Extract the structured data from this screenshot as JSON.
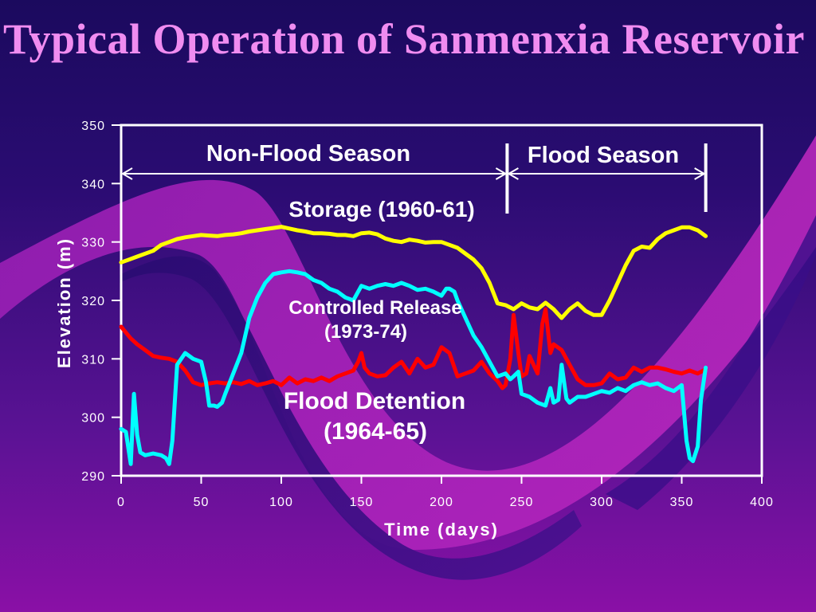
{
  "slide": {
    "title": "Typical Operation of Sanmenxia Reservoir"
  },
  "colors": {
    "storage": "#ffff00",
    "controlled_release": "#ff0000",
    "flood_detention": "#00ffff",
    "axes": "#ffffff"
  },
  "chart_data": {
    "type": "line",
    "title": "",
    "xlabel": "Time (days)",
    "ylabel": "Elevation (m)",
    "xlim": [
      0,
      400
    ],
    "ylim": [
      290,
      350
    ],
    "xticks": [
      0,
      50,
      100,
      150,
      200,
      250,
      300,
      350,
      400
    ],
    "yticks": [
      290,
      300,
      310,
      320,
      330,
      340,
      350
    ],
    "grid": false,
    "annotations": {
      "non_flood_season": "Non-Flood Season",
      "flood_season": "Flood Season",
      "storage": "Storage (1960-61)",
      "controlled_release_line1": "Controlled Release",
      "controlled_release_line2": "(1973-74)",
      "flood_detention_line1": "Flood Detention",
      "flood_detention_line2": "(1964-65)"
    },
    "season_markers": {
      "start": 0,
      "boundary": 241,
      "end": 365
    },
    "series": [
      {
        "key": "storage",
        "x": [
          0,
          5,
          10,
          15,
          20,
          25,
          30,
          35,
          40,
          45,
          50,
          55,
          60,
          65,
          70,
          75,
          80,
          85,
          90,
          95,
          100,
          105,
          110,
          115,
          120,
          125,
          130,
          135,
          140,
          145,
          150,
          155,
          160,
          165,
          170,
          175,
          180,
          185,
          190,
          195,
          200,
          205,
          210,
          215,
          220,
          225,
          230,
          235,
          240,
          245,
          250,
          255,
          260,
          265,
          270,
          275,
          280,
          285,
          290,
          295,
          300,
          305,
          310,
          315,
          320,
          325,
          330,
          335,
          340,
          345,
          350,
          355,
          360,
          365
        ],
        "y": [
          326.5,
          327,
          327.5,
          328,
          328.5,
          329.5,
          330,
          330.5,
          330.8,
          331,
          331.2,
          331.1,
          331,
          331.2,
          331.3,
          331.5,
          331.8,
          332,
          332.2,
          332.4,
          332.6,
          332.3,
          332,
          331.8,
          331.5,
          331.5,
          331.4,
          331.2,
          331.2,
          331,
          331.5,
          331.6,
          331.3,
          330.6,
          330.2,
          330,
          330.4,
          330.2,
          329.9,
          330,
          330,
          329.5,
          329,
          328,
          327,
          325.5,
          323,
          319.5,
          319.2,
          318.5,
          319.5,
          318.8,
          318.5,
          319.6,
          318.5,
          317,
          318.5,
          319.5,
          318.2,
          317.5,
          317.5,
          320,
          323,
          326,
          328.5,
          329.2,
          329,
          330.5,
          331.5,
          332,
          332.5,
          332.5,
          332,
          331
        ]
      },
      {
        "key": "controlled_release",
        "x": [
          0,
          3,
          6,
          10,
          15,
          20,
          25,
          30,
          35,
          40,
          45,
          50,
          55,
          60,
          65,
          70,
          75,
          80,
          85,
          90,
          95,
          100,
          105,
          110,
          115,
          120,
          125,
          130,
          135,
          140,
          145,
          148,
          150,
          152,
          155,
          160,
          165,
          170,
          175,
          180,
          185,
          190,
          195,
          200,
          205,
          210,
          215,
          220,
          225,
          230,
          235,
          238,
          240,
          243,
          245,
          248,
          250,
          253,
          255,
          260,
          263,
          265,
          268,
          270,
          275,
          280,
          285,
          290,
          295,
          300,
          305,
          310,
          315,
          320,
          325,
          330,
          335,
          340,
          345,
          350,
          355,
          360,
          365
        ],
        "y": [
          315.5,
          314.5,
          313.5,
          312.5,
          311.5,
          310.5,
          310.2,
          310,
          309.5,
          308,
          306,
          305.5,
          305.8,
          306,
          305.8,
          306,
          305.7,
          306.2,
          305.5,
          305.8,
          306.2,
          305.5,
          306.8,
          305.8,
          306.5,
          306.2,
          306.8,
          306.2,
          307,
          307.5,
          308,
          309.5,
          311,
          308.5,
          307.5,
          307,
          307.2,
          308.5,
          309.5,
          307.5,
          310,
          308.5,
          309,
          312,
          311,
          307,
          307.5,
          308,
          309.5,
          307.5,
          306.2,
          305,
          305.5,
          310,
          317.5,
          311,
          307,
          307.5,
          310.5,
          307.5,
          316,
          318.5,
          311,
          312.5,
          311.5,
          309,
          306.5,
          305.5,
          305.5,
          305.8,
          307.5,
          306.5,
          306.8,
          308.5,
          307.8,
          308.5,
          308.5,
          308.2,
          307.8,
          307.5,
          308,
          307.5,
          308.2
        ]
      },
      {
        "key": "flood_detention",
        "x": [
          0,
          3,
          6,
          8,
          10,
          12,
          15,
          20,
          25,
          28,
          30,
          32,
          35,
          40,
          45,
          50,
          53,
          55,
          58,
          60,
          63,
          65,
          70,
          75,
          80,
          85,
          90,
          95,
          100,
          105,
          110,
          115,
          120,
          125,
          130,
          135,
          140,
          145,
          150,
          155,
          160,
          165,
          170,
          175,
          180,
          185,
          190,
          195,
          200,
          203,
          205,
          208,
          210,
          215,
          220,
          225,
          230,
          235,
          240,
          243,
          245,
          248,
          250,
          255,
          260,
          265,
          268,
          270,
          273,
          275,
          278,
          280,
          285,
          290,
          295,
          300,
          305,
          310,
          315,
          320,
          325,
          330,
          335,
          340,
          345,
          350,
          353,
          355,
          357,
          360,
          362,
          365
        ],
        "y": [
          298,
          297.5,
          292,
          304,
          297,
          294,
          293.5,
          293.8,
          293.5,
          293,
          292,
          296,
          309,
          311,
          310,
          309.5,
          306,
          302,
          302,
          301.8,
          302.5,
          304,
          307.5,
          311,
          317,
          320.5,
          323,
          324.5,
          324.8,
          325,
          324.8,
          324.5,
          323.5,
          323,
          322,
          321.5,
          320.5,
          320,
          322.5,
          322,
          322.5,
          322.8,
          322.5,
          323,
          322.5,
          321.8,
          322,
          321.5,
          320.8,
          322,
          322,
          321.5,
          320,
          317,
          314,
          312,
          309.5,
          307,
          307.5,
          306.5,
          307,
          307.8,
          304,
          303.5,
          302.5,
          302,
          305,
          302.5,
          303,
          309,
          303.2,
          302.5,
          303.5,
          303.5,
          304,
          304.5,
          304.2,
          305,
          304.5,
          305.5,
          306,
          305.5,
          305.8,
          305,
          304.5,
          305.5,
          296,
          293,
          292.5,
          295,
          303,
          308.5
        ]
      }
    ]
  }
}
